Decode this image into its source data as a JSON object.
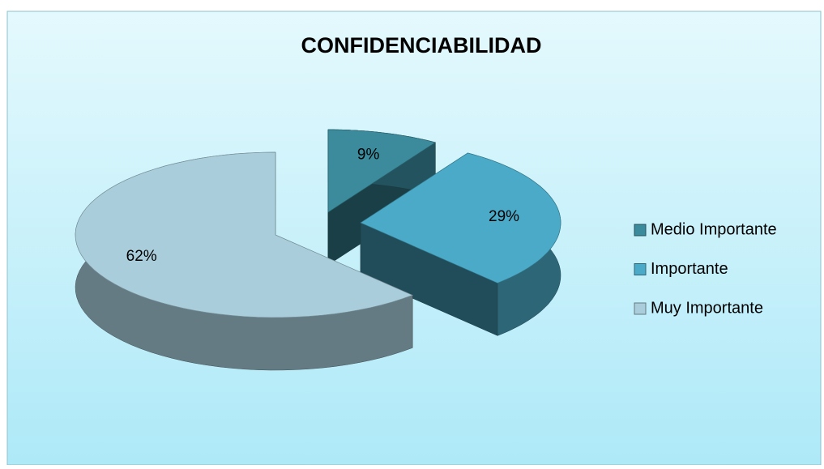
{
  "chart_data": {
    "type": "pie",
    "title": "CONFIDENCIABILIDAD",
    "categories": [
      "Medio Importante",
      "Importante",
      "Muy Importante"
    ],
    "values": [
      9,
      29,
      62
    ],
    "value_labels": [
      "9%",
      "29%",
      "62%"
    ],
    "colors": [
      "#3b8b9c",
      "#4aaac7",
      "#a9cdda"
    ],
    "legend": "right"
  }
}
